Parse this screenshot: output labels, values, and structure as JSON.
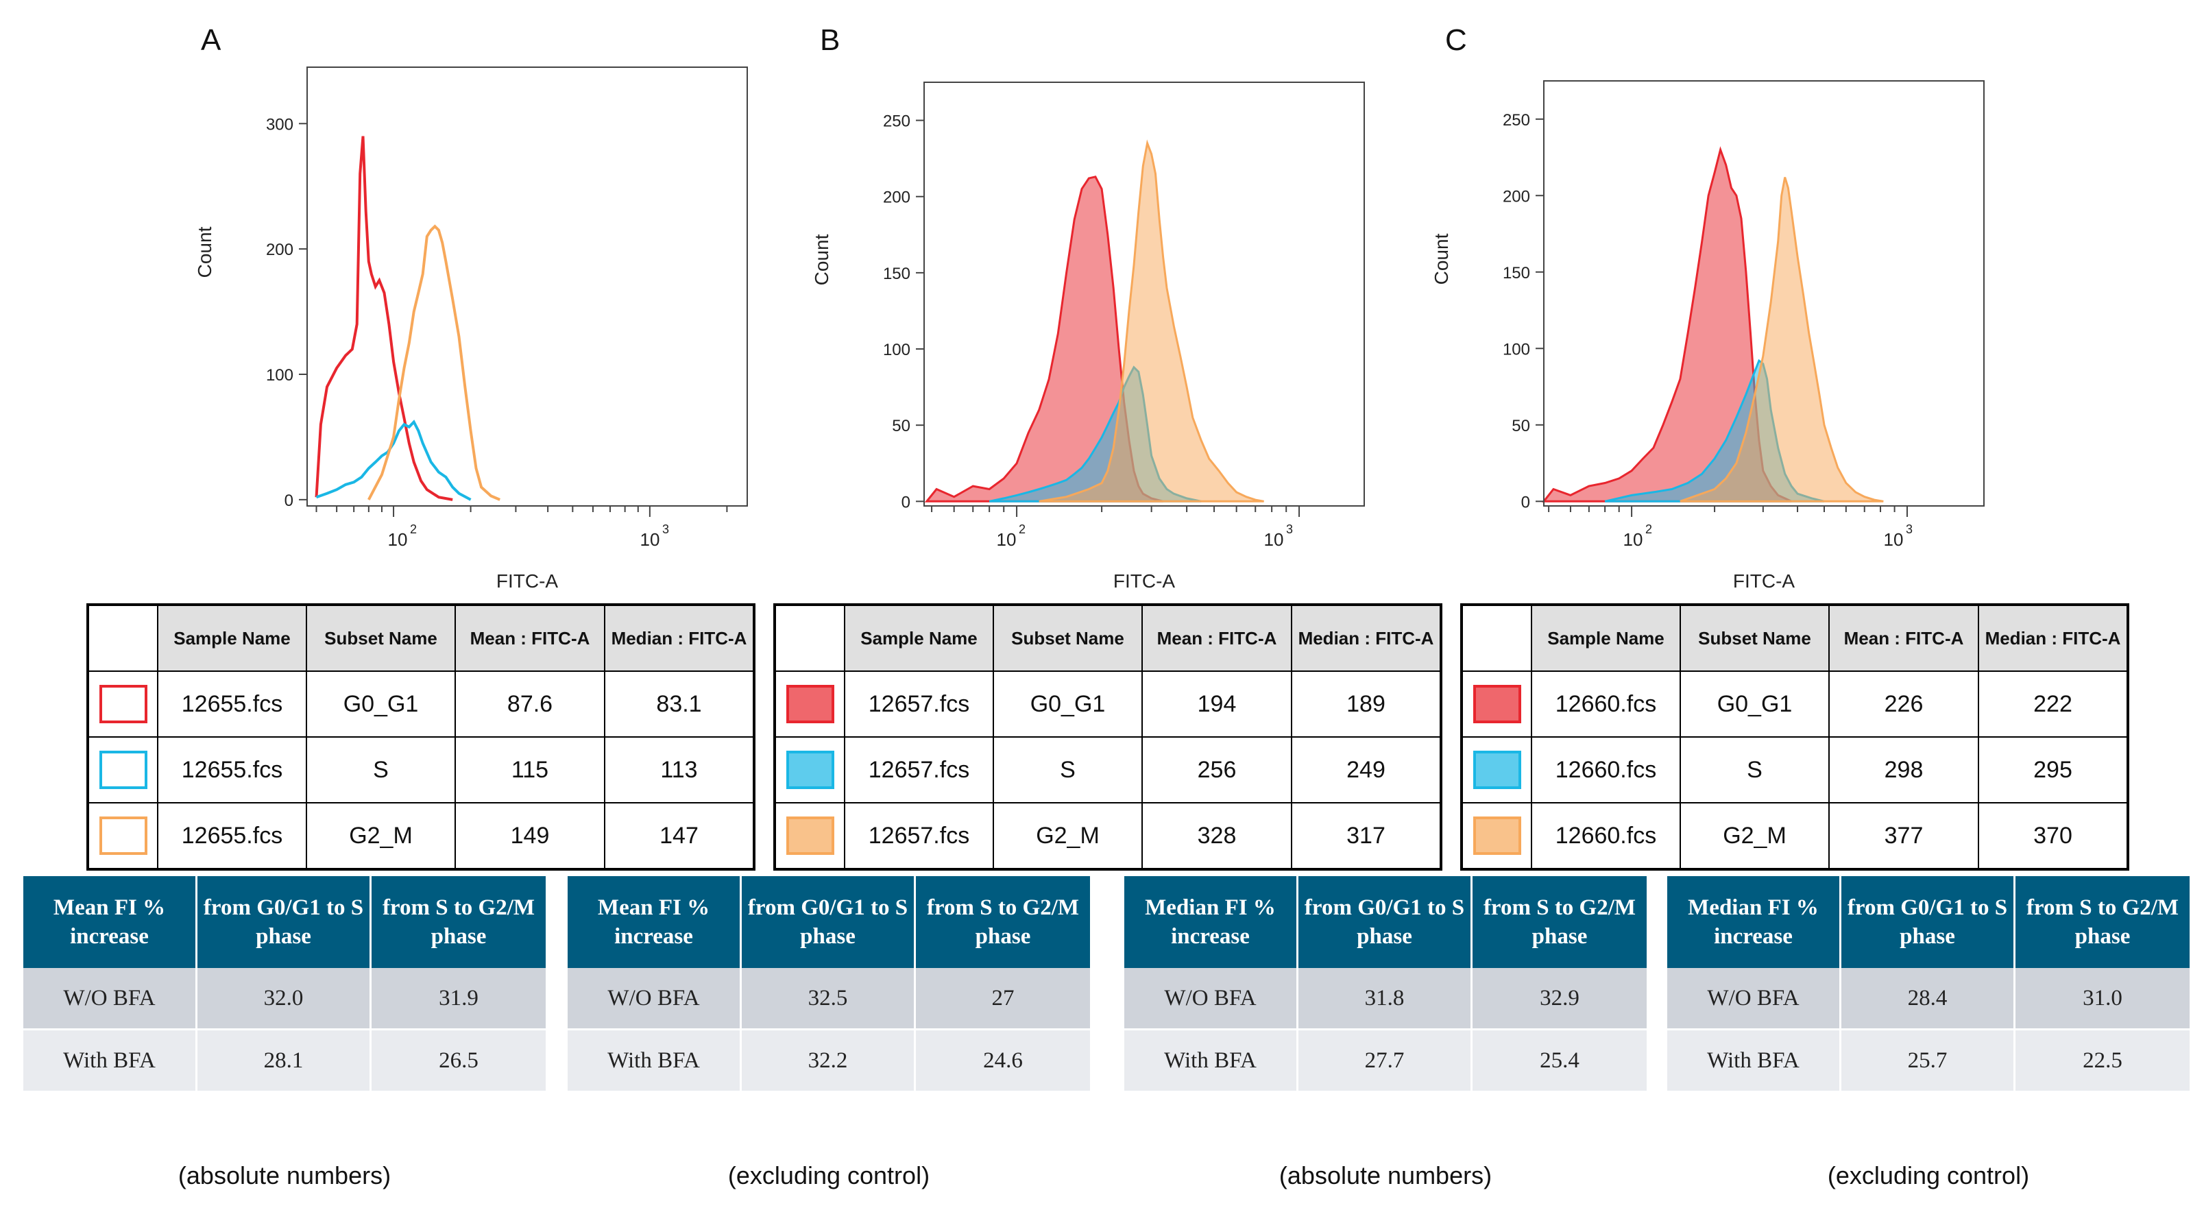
{
  "panels": [
    {
      "letter": "A",
      "fill": false,
      "chart_data": {
        "type": "histogram",
        "xlabel": "FITC-A",
        "ylabel": "Count",
        "xscale": "log",
        "xlim": [
          46,
          2400
        ],
        "ylim": [
          -5,
          345
        ],
        "yticks": [
          0,
          100,
          200,
          300
        ],
        "xtick_labels": [
          "10",
          "10"
        ],
        "xtick_exponents": [
          "2",
          "3"
        ],
        "series": [
          {
            "name": "G0_G1",
            "color": "#e8262e",
            "x": [
              50,
              52,
              55,
              60,
              65,
              69,
              72,
              74,
              76,
              78,
              80,
              82,
              85,
              88,
              92,
              96,
              100,
              105,
              110,
              115,
              120,
              128,
              135,
              150,
              170
            ],
            "y": [
              2,
              60,
              90,
              105,
              115,
              120,
              140,
              260,
              290,
              230,
              190,
              180,
              170,
              175,
              165,
              140,
              110,
              85,
              65,
              45,
              30,
              15,
              8,
              2,
              0
            ]
          },
          {
            "name": "S",
            "color": "#1ab7e5",
            "x": [
              50,
              55,
              60,
              65,
              70,
              75,
              80,
              85,
              90,
              95,
              100,
              105,
              110,
              115,
              120,
              125,
              130,
              140,
              150,
              160,
              170,
              180,
              200
            ],
            "y": [
              2,
              5,
              8,
              12,
              14,
              18,
              25,
              30,
              35,
              38,
              45,
              55,
              60,
              58,
              62,
              55,
              45,
              30,
              22,
              18,
              10,
              5,
              0
            ]
          },
          {
            "name": "G2_M",
            "color": "#f7a85a",
            "x": [
              80,
              90,
              100,
              105,
              110,
              115,
              120,
              125,
              130,
              135,
              140,
              145,
              150,
              155,
              160,
              170,
              180,
              190,
              200,
              210,
              220,
              240,
              260
            ],
            "y": [
              0,
              20,
              50,
              80,
              105,
              125,
              150,
              165,
              180,
              210,
              215,
              218,
              215,
              205,
              190,
              160,
              130,
              90,
              55,
              25,
              10,
              3,
              0
            ]
          }
        ]
      },
      "table": {
        "headers": [
          "Sample Name",
          "Subset Name",
          "Mean : FITC-A",
          "Median : FITC-A"
        ],
        "rows": [
          {
            "sample": "12655.fcs",
            "subset": "G0_G1",
            "mean": "87.6",
            "median": "83.1",
            "color": "#e8262e"
          },
          {
            "sample": "12655.fcs",
            "subset": "S",
            "mean": "115",
            "median": "113",
            "color": "#1ab7e5"
          },
          {
            "sample": "12655.fcs",
            "subset": "G2_M",
            "mean": "149",
            "median": "147",
            "color": "#f7a85a"
          }
        ]
      }
    },
    {
      "letter": "B",
      "fill": true,
      "chart_data": {
        "type": "histogram",
        "xlabel": "FITC-A",
        "ylabel": "Count",
        "xscale": "log",
        "xlim": [
          47,
          1700
        ],
        "ylim": [
          -3,
          275
        ],
        "yticks": [
          0,
          50,
          100,
          150,
          200,
          250
        ],
        "xtick_labels": [
          "10",
          "10"
        ],
        "xtick_exponents": [
          "2",
          "3"
        ],
        "series": [
          {
            "name": "G0_G1",
            "color": "#e8262e",
            "x": [
              48,
              52,
              60,
              70,
              80,
              90,
              100,
              110,
              120,
              130,
              140,
              150,
              160,
              170,
              180,
              190,
              200,
              210,
              220,
              230,
              240,
              250,
              260,
              270,
              280,
              300,
              330
            ],
            "y": [
              0,
              8,
              3,
              10,
              8,
              15,
              25,
              45,
              60,
              80,
              110,
              150,
              185,
              205,
              212,
              213,
              205,
              175,
              140,
              100,
              65,
              40,
              20,
              10,
              5,
              2,
              0
            ]
          },
          {
            "name": "S",
            "color": "#1ab7e5",
            "x": [
              80,
              90,
              100,
              110,
              120,
              130,
              140,
              150,
              160,
              170,
              180,
              190,
              200,
              210,
              220,
              230,
              240,
              250,
              260,
              270,
              280,
              290,
              300,
              320,
              340,
              360,
              400,
              450
            ],
            "y": [
              0,
              2,
              4,
              6,
              8,
              10,
              12,
              14,
              18,
              22,
              28,
              35,
              42,
              50,
              58,
              65,
              75,
              82,
              88,
              85,
              70,
              50,
              30,
              15,
              8,
              5,
              2,
              0
            ]
          },
          {
            "name": "G2_M",
            "color": "#f7a85a",
            "x": [
              120,
              150,
              180,
              200,
              210,
              220,
              230,
              240,
              250,
              260,
              270,
              280,
              290,
              300,
              310,
              320,
              330,
              340,
              360,
              380,
              400,
              420,
              450,
              480,
              520,
              560,
              600,
              650,
              700,
              750
            ],
            "y": [
              0,
              3,
              8,
              12,
              20,
              35,
              60,
              90,
              125,
              155,
              190,
              220,
              235,
              228,
              215,
              185,
              160,
              140,
              115,
              95,
              75,
              55,
              40,
              28,
              20,
              12,
              6,
              3,
              1,
              0
            ]
          }
        ]
      },
      "table": {
        "headers": [
          "Sample Name",
          "Subset Name",
          "Mean : FITC-A",
          "Median : FITC-A"
        ],
        "rows": [
          {
            "sample": "12657.fcs",
            "subset": "G0_G1",
            "mean": "194",
            "median": "189",
            "color": "#e8262e"
          },
          {
            "sample": "12657.fcs",
            "subset": "S",
            "mean": "256",
            "median": "249",
            "color": "#1ab7e5"
          },
          {
            "sample": "12657.fcs",
            "subset": "G2_M",
            "mean": "328",
            "median": "317",
            "color": "#f7a85a"
          }
        ]
      }
    },
    {
      "letter": "C",
      "fill": true,
      "chart_data": {
        "type": "histogram",
        "xlabel": "FITC-A",
        "ylabel": "Count",
        "xscale": "log",
        "xlim": [
          48,
          1900
        ],
        "ylim": [
          -3,
          275
        ],
        "yticks": [
          0,
          50,
          100,
          150,
          200,
          250
        ],
        "xtick_labels": [
          "10",
          "10"
        ],
        "xtick_exponents": [
          "2",
          "3"
        ],
        "series": [
          {
            "name": "G0_G1",
            "color": "#e8262e",
            "x": [
              48,
              52,
              60,
              70,
              80,
              90,
              100,
              110,
              120,
              130,
              140,
              150,
              160,
              170,
              180,
              190,
              200,
              210,
              220,
              230,
              240,
              250,
              260,
              270,
              280,
              290,
              300,
              320,
              340,
              380
            ],
            "y": [
              0,
              8,
              4,
              10,
              12,
              15,
              20,
              28,
              35,
              50,
              65,
              80,
              110,
              140,
              170,
              200,
              215,
              230,
              220,
              205,
              200,
              185,
              150,
              110,
              70,
              40,
              20,
              10,
              4,
              0
            ]
          },
          {
            "name": "S",
            "color": "#1ab7e5",
            "x": [
              80,
              100,
              120,
              140,
              160,
              180,
              200,
              220,
              240,
              260,
              280,
              290,
              300,
              310,
              320,
              340,
              360,
              380,
              400,
              450,
              500
            ],
            "y": [
              0,
              4,
              6,
              8,
              12,
              18,
              28,
              40,
              55,
              70,
              85,
              92,
              90,
              80,
              60,
              35,
              18,
              10,
              5,
              2,
              0
            ]
          },
          {
            "name": "G2_M",
            "color": "#f7a85a",
            "x": [
              150,
              200,
              220,
              240,
              260,
              280,
              300,
              320,
              340,
              350,
              360,
              370,
              380,
              400,
              420,
              440,
              460,
              480,
              500,
              530,
              560,
              600,
              650,
              700,
              760,
              820
            ],
            "y": [
              0,
              8,
              15,
              25,
              45,
              70,
              95,
              130,
              170,
              200,
              212,
              205,
              190,
              160,
              135,
              110,
              90,
              70,
              50,
              35,
              22,
              12,
              6,
              3,
              1,
              0
            ]
          }
        ]
      },
      "table": {
        "headers": [
          "Sample Name",
          "Subset Name",
          "Mean : FITC-A",
          "Median : FITC-A"
        ],
        "rows": [
          {
            "sample": "12660.fcs",
            "subset": "G0_G1",
            "mean": "226",
            "median": "222",
            "color": "#e8262e"
          },
          {
            "sample": "12660.fcs",
            "subset": "S",
            "mean": "298",
            "median": "295",
            "color": "#1ab7e5"
          },
          {
            "sample": "12660.fcs",
            "subset": "G2_M",
            "mean": "377",
            "median": "370",
            "color": "#f7a85a"
          }
        ]
      }
    }
  ],
  "summary_tables": [
    {
      "headers": [
        "Mean FI % increase",
        "from G0/G1 to S phase",
        "from S to G2/M phase"
      ],
      "rows": [
        [
          "W/O BFA",
          "32.0",
          "31.9"
        ],
        [
          "With BFA",
          "28.1",
          "26.5"
        ]
      ],
      "caption": "(absolute numbers)"
    },
    {
      "headers": [
        "Mean FI % increase",
        "from G0/G1 to S phase",
        "from S to G2/M phase"
      ],
      "rows": [
        [
          "W/O BFA",
          "32.5",
          "27"
        ],
        [
          "With BFA",
          "32.2",
          "24.6"
        ]
      ],
      "caption": "(excluding control)"
    },
    {
      "headers": [
        "Median FI % increase",
        "from G0/G1 to S phase",
        "from S to G2/M phase"
      ],
      "rows": [
        [
          "W/O BFA",
          "31.8",
          "32.9"
        ],
        [
          "With BFA",
          "27.7",
          "25.4"
        ]
      ],
      "caption": "(absolute numbers)"
    },
    {
      "headers": [
        "Median FI % increase",
        "from G0/G1 to S phase",
        "from S to G2/M phase"
      ],
      "rows": [
        [
          "W/O BFA",
          "28.4",
          "31.0"
        ],
        [
          "With BFA",
          "25.7",
          "22.5"
        ]
      ],
      "caption": "(excluding control)"
    }
  ]
}
